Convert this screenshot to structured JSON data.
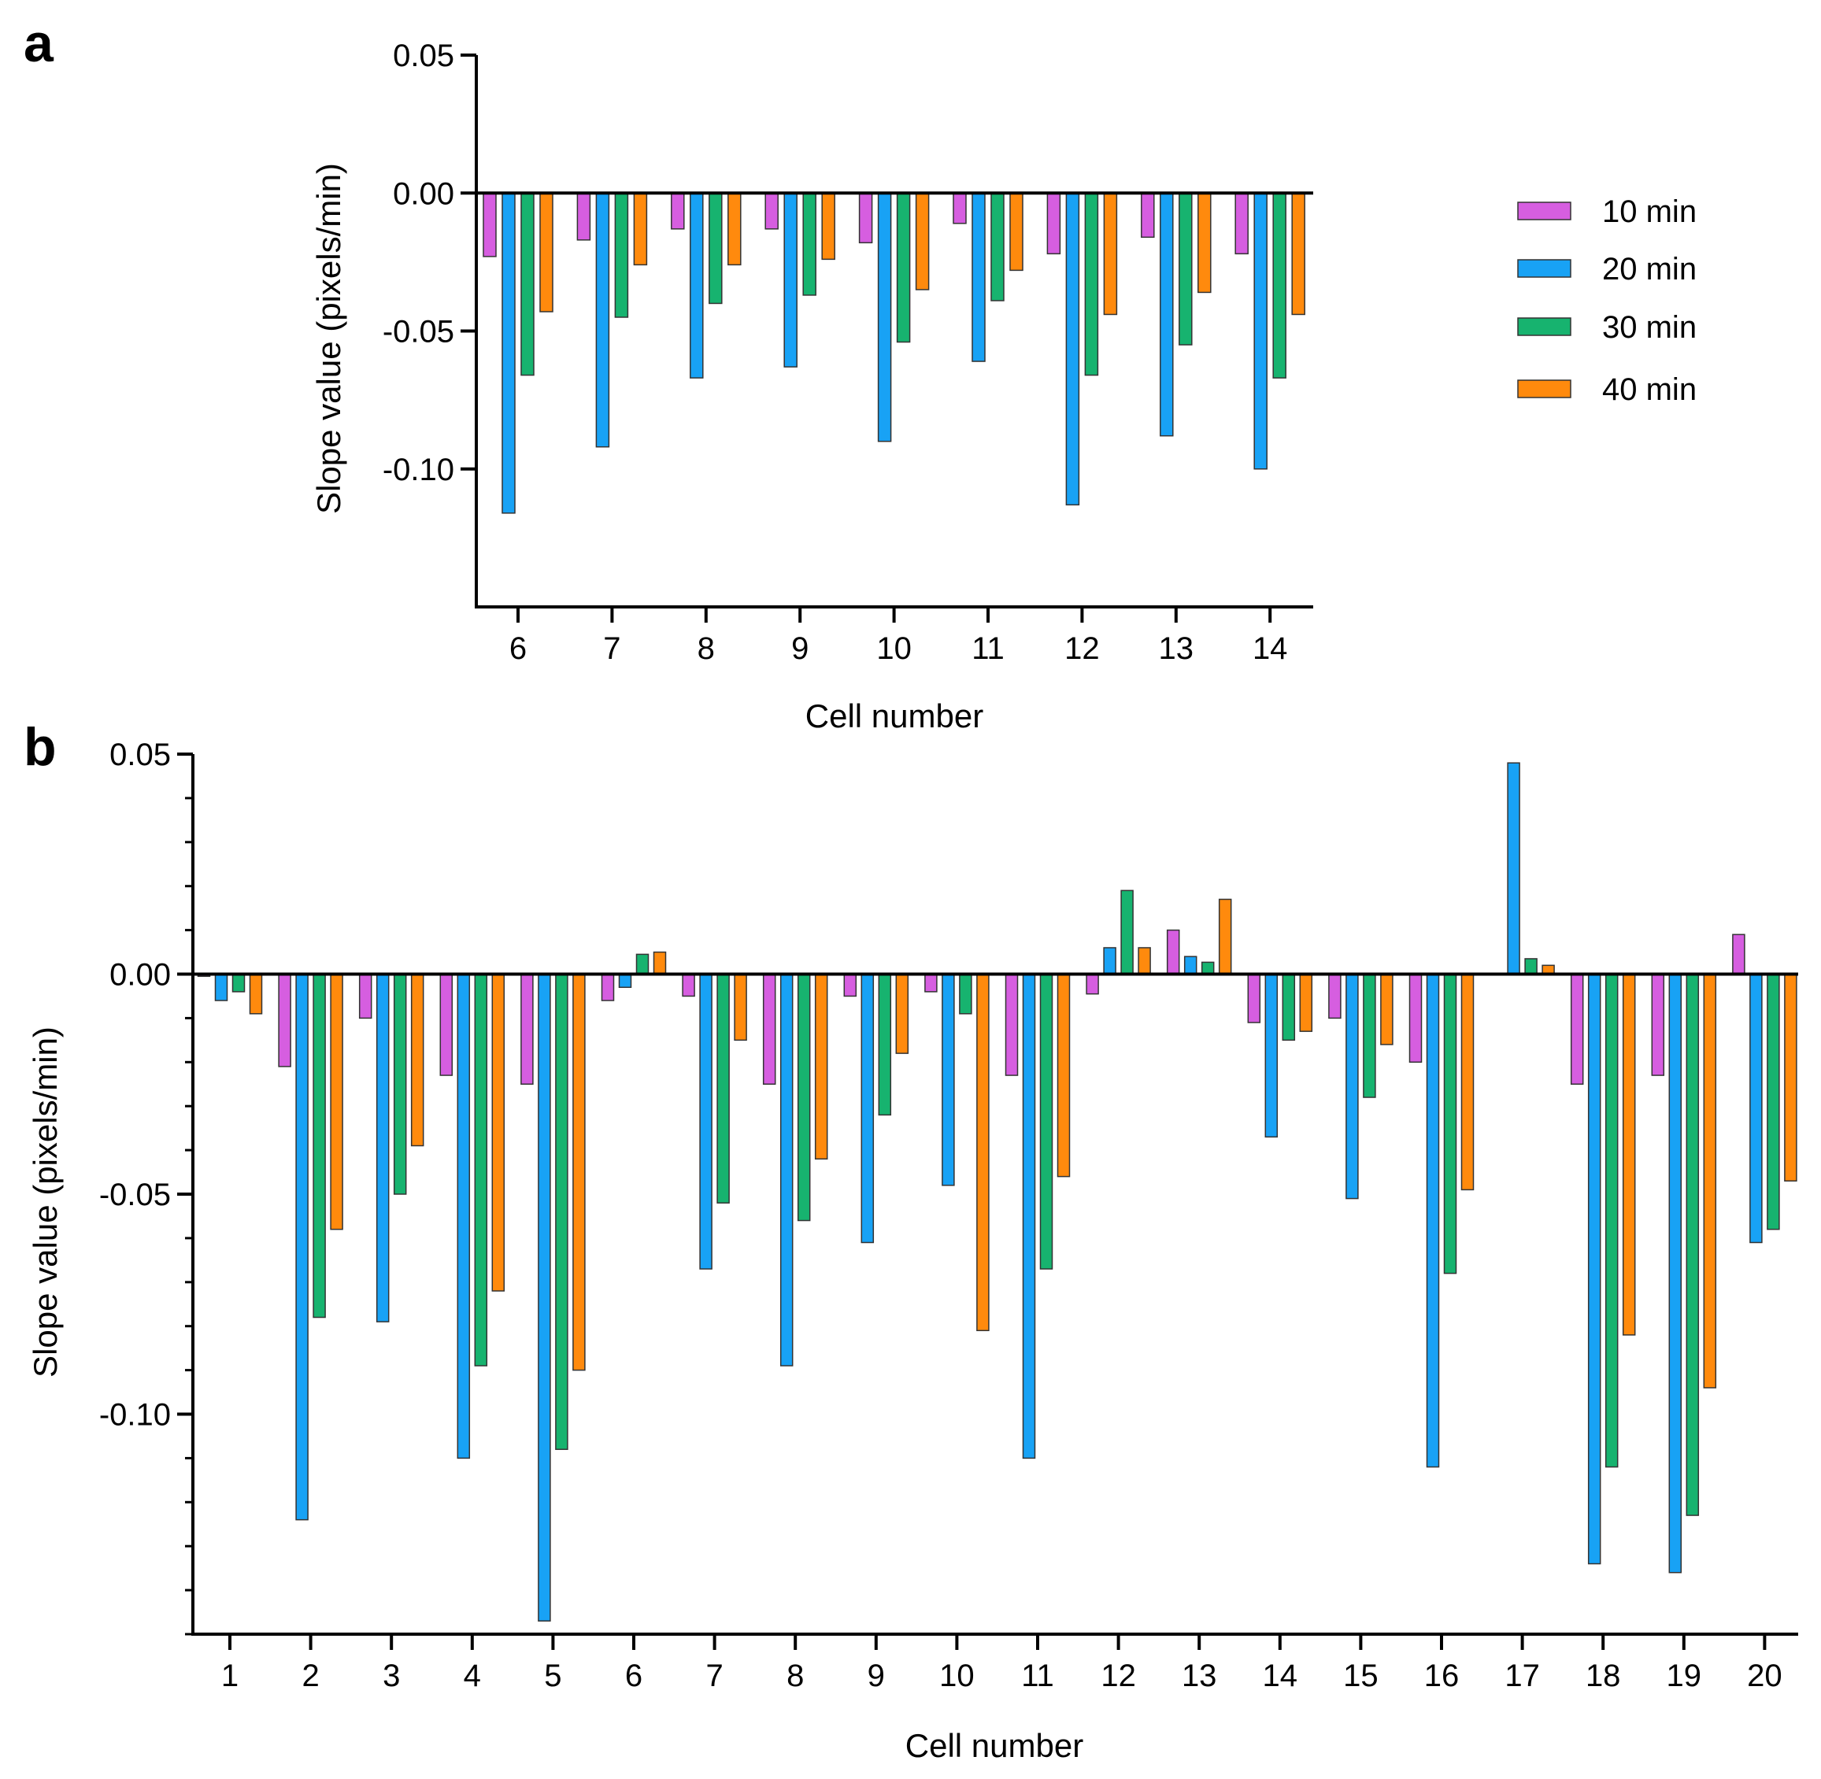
{
  "colors": {
    "10 min": "#d65ee0",
    "20 min": "#18a2f5",
    "30 min": "#17b36f",
    "40 min": "#ff8a0d",
    "axis": "#000000"
  },
  "chart_data": [
    {
      "panel_label": "a",
      "type": "bar",
      "xlabel": "Cell number",
      "ylabel": "Slope value (pixels/min)",
      "ylim": [
        -0.15,
        0.05
      ],
      "yticks": [
        "0.05",
        "0.00",
        "-0.05",
        "-0.10"
      ],
      "ytick_values": [
        0.05,
        0,
        -0.05,
        -0.1
      ],
      "categories": [
        "6",
        "7",
        "8",
        "9",
        "10",
        "11",
        "12",
        "13",
        "14"
      ],
      "legend_position": "right",
      "series": [
        {
          "name": "10 min",
          "values": [
            -0.023,
            -0.017,
            -0.013,
            -0.013,
            -0.018,
            -0.011,
            -0.022,
            -0.016,
            -0.022
          ]
        },
        {
          "name": "20 min",
          "values": [
            -0.116,
            -0.092,
            -0.067,
            -0.063,
            -0.09,
            -0.061,
            -0.113,
            -0.088,
            -0.1
          ]
        },
        {
          "name": "30 min",
          "values": [
            -0.066,
            -0.045,
            -0.04,
            -0.037,
            -0.054,
            -0.039,
            -0.066,
            -0.055,
            -0.067
          ]
        },
        {
          "name": "40 min",
          "values": [
            -0.043,
            -0.026,
            -0.026,
            -0.024,
            -0.035,
            -0.028,
            -0.044,
            -0.036,
            -0.044
          ]
        }
      ]
    },
    {
      "panel_label": "b",
      "type": "bar",
      "xlabel": "Cell number",
      "ylabel": "Slope value (pixels/min)",
      "ylim": [
        -0.15,
        0.05
      ],
      "yticks": [
        "0.05",
        "0.00",
        "-0.05",
        "-0.10"
      ],
      "ytick_values": [
        0.05,
        0,
        -0.05,
        -0.1
      ],
      "categories": [
        "1",
        "2",
        "3",
        "4",
        "5",
        "6",
        "7",
        "8",
        "9",
        "10",
        "11",
        "12",
        "13",
        "14",
        "15",
        "16",
        "17",
        "18",
        "19",
        "20"
      ],
      "series": [
        {
          "name": "10 min",
          "values": [
            -0.0005,
            -0.021,
            -0.01,
            -0.023,
            -0.025,
            -0.006,
            -0.005,
            -0.025,
            -0.005,
            -0.004,
            -0.023,
            -0.0045,
            0.01,
            -0.011,
            -0.01,
            -0.02,
            0.0,
            -0.025,
            -0.023,
            0.009
          ]
        },
        {
          "name": "20 min",
          "values": [
            -0.006,
            -0.124,
            -0.079,
            -0.11,
            -0.147,
            -0.003,
            -0.067,
            -0.089,
            -0.061,
            -0.048,
            -0.11,
            0.006,
            0.004,
            -0.037,
            -0.051,
            -0.112,
            0.048,
            -0.134,
            -0.136,
            -0.061
          ]
        },
        {
          "name": "30 min",
          "values": [
            -0.004,
            -0.078,
            -0.05,
            -0.089,
            -0.108,
            0.0045,
            -0.052,
            -0.056,
            -0.032,
            -0.009,
            -0.067,
            0.019,
            0.0027,
            -0.015,
            -0.028,
            -0.068,
            0.0035,
            -0.112,
            -0.123,
            -0.058
          ]
        },
        {
          "name": "40 min",
          "values": [
            -0.009,
            -0.058,
            -0.039,
            -0.072,
            -0.09,
            0.005,
            -0.015,
            -0.042,
            -0.018,
            -0.081,
            -0.046,
            0.006,
            0.017,
            -0.013,
            -0.016,
            -0.049,
            0.002,
            -0.082,
            -0.094,
            -0.047
          ]
        }
      ]
    }
  ]
}
